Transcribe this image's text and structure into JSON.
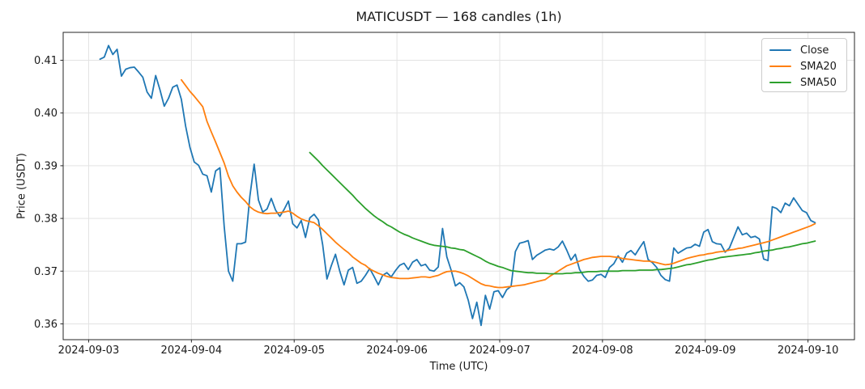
{
  "figure": {
    "background": "#ffffff",
    "grid_color": "#e3e3e3",
    "spine_color": "#262626",
    "text_color": "#1a1a1a"
  },
  "chart_data": {
    "type": "line",
    "title": "MATICUSDT — 168 candles (1h)",
    "xlabel": "Time (UTC)",
    "ylabel": "Price (USDT)",
    "n_candles": 168,
    "interval": "1h",
    "grid": true,
    "legend": {
      "position": "upper right",
      "entries": [
        "Close",
        "SMA20",
        "SMA50"
      ]
    },
    "axes": {
      "xlim_hours": [
        -8.6,
        176.2
      ],
      "ylim": [
        0.357,
        0.4153
      ],
      "y_ticks": [
        0.36,
        0.37,
        0.38,
        0.39,
        0.4,
        0.41
      ],
      "x_ticks": [
        {
          "hour": -2.65,
          "label": "2024-09-03"
        },
        {
          "hour": 21.35,
          "label": "2024-09-04"
        },
        {
          "hour": 45.35,
          "label": "2024-09-05"
        },
        {
          "hour": 69.35,
          "label": "2024-09-06"
        },
        {
          "hour": 93.35,
          "label": "2024-09-07"
        },
        {
          "hour": 117.35,
          "label": "2024-09-08"
        },
        {
          "hour": 141.35,
          "label": "2024-09-09"
        },
        {
          "hour": 165.35,
          "label": "2024-09-10"
        }
      ]
    },
    "series": [
      {
        "name": "Close",
        "color": "#1f77b4",
        "start_index": 0,
        "values": [
          0.4102,
          0.4106,
          0.4128,
          0.4111,
          0.4121,
          0.407,
          0.4083,
          0.4086,
          0.4087,
          0.4078,
          0.4068,
          0.404,
          0.4028,
          0.4071,
          0.4044,
          0.4013,
          0.4028,
          0.4049,
          0.4053,
          0.4026,
          0.3975,
          0.3935,
          0.3907,
          0.3901,
          0.3884,
          0.3881,
          0.385,
          0.389,
          0.3896,
          0.3785,
          0.37,
          0.3681,
          0.3752,
          0.3752,
          0.3755,
          0.3842,
          0.3903,
          0.3835,
          0.3812,
          0.3818,
          0.3838,
          0.3816,
          0.3804,
          0.3817,
          0.3833,
          0.379,
          0.3782,
          0.3796,
          0.3764,
          0.3801,
          0.3808,
          0.3797,
          0.375,
          0.3685,
          0.371,
          0.3732,
          0.37,
          0.3674,
          0.3702,
          0.3707,
          0.3677,
          0.3681,
          0.3692,
          0.3705,
          0.369,
          0.3674,
          0.3692,
          0.3697,
          0.3689,
          0.3701,
          0.3711,
          0.3715,
          0.3703,
          0.3717,
          0.3722,
          0.371,
          0.3713,
          0.3702,
          0.37,
          0.3708,
          0.3781,
          0.3727,
          0.3702,
          0.3672,
          0.3678,
          0.367,
          0.3645,
          0.361,
          0.3641,
          0.3597,
          0.3654,
          0.3628,
          0.3661,
          0.3663,
          0.365,
          0.3665,
          0.3671,
          0.3737,
          0.3753,
          0.3755,
          0.3758,
          0.3722,
          0.373,
          0.3735,
          0.374,
          0.3742,
          0.374,
          0.3746,
          0.3757,
          0.374,
          0.3721,
          0.3732,
          0.3703,
          0.369,
          0.3681,
          0.3683,
          0.3692,
          0.3694,
          0.3688,
          0.3707,
          0.3714,
          0.3729,
          0.3717,
          0.3734,
          0.3739,
          0.3731,
          0.3744,
          0.3756,
          0.3722,
          0.3716,
          0.3707,
          0.3692,
          0.3684,
          0.3681,
          0.3744,
          0.3734,
          0.3739,
          0.3744,
          0.3745,
          0.3751,
          0.3747,
          0.3774,
          0.3779,
          0.3756,
          0.3752,
          0.3751,
          0.3736,
          0.3744,
          0.3764,
          0.3784,
          0.3769,
          0.3772,
          0.3764,
          0.3766,
          0.3761,
          0.3723,
          0.372,
          0.3822,
          0.3819,
          0.3811,
          0.3829,
          0.3824,
          0.3839,
          0.3827,
          0.3815,
          0.3811,
          0.3796,
          0.3792
        ]
      },
      {
        "name": "SMA20",
        "color": "#ff7f0e",
        "start_index": 19,
        "values": [
          0.4063,
          0.4052,
          0.4041,
          0.4032,
          0.4022,
          0.4012,
          0.3984,
          0.3964,
          0.3945,
          0.3925,
          0.3905,
          0.388,
          0.3862,
          0.385,
          0.384,
          0.3832,
          0.3822,
          0.3816,
          0.3812,
          0.381,
          0.3809,
          0.381,
          0.381,
          0.3811,
          0.3812,
          0.3814,
          0.381,
          0.3804,
          0.3799,
          0.3796,
          0.3794,
          0.3792,
          0.3786,
          0.3779,
          0.3771,
          0.3763,
          0.3755,
          0.3748,
          0.3741,
          0.3735,
          0.3727,
          0.3721,
          0.3715,
          0.3711,
          0.3704,
          0.37,
          0.3696,
          0.3693,
          0.369,
          0.3688,
          0.3687,
          0.3686,
          0.3686,
          0.3686,
          0.3687,
          0.3688,
          0.3689,
          0.3689,
          0.3688,
          0.369,
          0.3692,
          0.3696,
          0.3699,
          0.37,
          0.37,
          0.3698,
          0.3695,
          0.3691,
          0.3686,
          0.3681,
          0.3676,
          0.3673,
          0.3672,
          0.367,
          0.3669,
          0.3669,
          0.367,
          0.3671,
          0.3672,
          0.3673,
          0.3674,
          0.3676,
          0.3678,
          0.368,
          0.3682,
          0.3684,
          0.369,
          0.3695,
          0.37,
          0.3705,
          0.371,
          0.3713,
          0.3716,
          0.3719,
          0.3722,
          0.3724,
          0.3726,
          0.3727,
          0.3728,
          0.3728,
          0.3728,
          0.3727,
          0.3726,
          0.3724,
          0.3723,
          0.3722,
          0.3721,
          0.372,
          0.3719,
          0.3719,
          0.3718,
          0.3716,
          0.3714,
          0.3712,
          0.3713,
          0.3715,
          0.3718,
          0.3721,
          0.3724,
          0.3726,
          0.3728,
          0.373,
          0.3731,
          0.3733,
          0.3734,
          0.3736,
          0.3737,
          0.3738,
          0.374,
          0.3741,
          0.3743,
          0.3744,
          0.3746,
          0.3748,
          0.375,
          0.3752,
          0.3754,
          0.3756,
          0.3759,
          0.3762,
          0.3765,
          0.3768,
          0.3771,
          0.3774,
          0.3777,
          0.378,
          0.3783,
          0.3786,
          0.379
        ]
      },
      {
        "name": "SMA50",
        "color": "#2ca02c",
        "start_index": 49,
        "values": [
          0.3925,
          0.3917,
          0.3909,
          0.39,
          0.3892,
          0.3884,
          0.3876,
          0.3868,
          0.386,
          0.3852,
          0.3844,
          0.3835,
          0.3827,
          0.3819,
          0.3812,
          0.3805,
          0.3799,
          0.3794,
          0.3788,
          0.3784,
          0.3779,
          0.3774,
          0.377,
          0.3767,
          0.3763,
          0.376,
          0.3757,
          0.3754,
          0.3751,
          0.3749,
          0.3748,
          0.3747,
          0.3746,
          0.3744,
          0.3743,
          0.3741,
          0.374,
          0.3736,
          0.3732,
          0.3728,
          0.3724,
          0.3719,
          0.3715,
          0.3712,
          0.3709,
          0.3707,
          0.3704,
          0.3701,
          0.37,
          0.3699,
          0.3698,
          0.3697,
          0.3697,
          0.3696,
          0.3696,
          0.3696,
          0.3695,
          0.3695,
          0.3695,
          0.3695,
          0.3696,
          0.3696,
          0.3697,
          0.3697,
          0.3698,
          0.3699,
          0.3699,
          0.3699,
          0.37,
          0.37,
          0.37,
          0.37,
          0.37,
          0.3701,
          0.3701,
          0.3701,
          0.3701,
          0.3702,
          0.3702,
          0.3702,
          0.3702,
          0.3703,
          0.3703,
          0.3704,
          0.3705,
          0.3706,
          0.3708,
          0.371,
          0.3712,
          0.3713,
          0.3715,
          0.3717,
          0.3719,
          0.3721,
          0.3722,
          0.3724,
          0.3726,
          0.3727,
          0.3728,
          0.3729,
          0.373,
          0.3731,
          0.3732,
          0.3733,
          0.3735,
          0.3736,
          0.3738,
          0.3739,
          0.374,
          0.3742,
          0.3743,
          0.3745,
          0.3746,
          0.3748,
          0.375,
          0.3752,
          0.3753,
          0.3755,
          0.3757
        ]
      }
    ]
  }
}
